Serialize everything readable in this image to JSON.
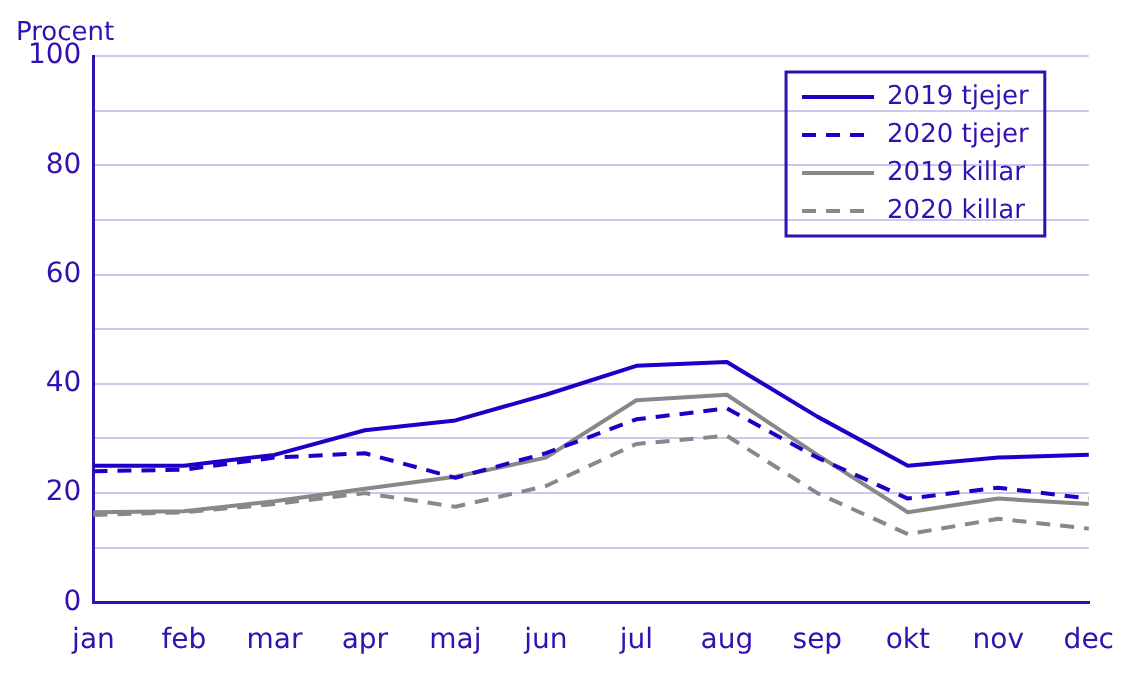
{
  "chart_data": {
    "type": "line",
    "ylabel": "Procent",
    "categories": [
      "jan",
      "feb",
      "mar",
      "apr",
      "maj",
      "jun",
      "jul",
      "aug",
      "sep",
      "okt",
      "nov",
      "dec"
    ],
    "series": [
      {
        "name": "2019 tjejer",
        "color": "#1c00c8",
        "line_style": "solid",
        "values": [
          25,
          25,
          27,
          31.5,
          33.3,
          38,
          43.3,
          44,
          34,
          25,
          26.5,
          27
        ]
      },
      {
        "name": "2020 tjejer",
        "color": "#1c00c8",
        "line_style": "dashed",
        "values": [
          24,
          24.3,
          26.5,
          27.3,
          22.8,
          27.3,
          33.5,
          35.5,
          26.5,
          19,
          21,
          19
        ]
      },
      {
        "name": "2019 killar",
        "color": "#888888",
        "line_style": "solid",
        "values": [
          16.5,
          16.7,
          18.5,
          20.8,
          23,
          26.5,
          37,
          38,
          27,
          16.5,
          19,
          18
        ]
      },
      {
        "name": "2020 killar",
        "color": "#888888",
        "line_style": "dashed",
        "values": [
          16,
          16.5,
          18,
          20,
          17.5,
          21.3,
          29,
          30.5,
          20,
          12.5,
          15.3,
          13.5
        ]
      }
    ],
    "ylim": [
      0,
      100
    ],
    "yticks": [
      0,
      {
        "value": 10,
        "label": null
      },
      20,
      {
        "value": 30,
        "label": null
      },
      40,
      {
        "value": 50,
        "label": null
      },
      60,
      {
        "value": 70,
        "label": null
      },
      80,
      {
        "value": 90,
        "label": null
      },
      100
    ],
    "grid": "y",
    "legend": "top right",
    "marker": "none"
  }
}
